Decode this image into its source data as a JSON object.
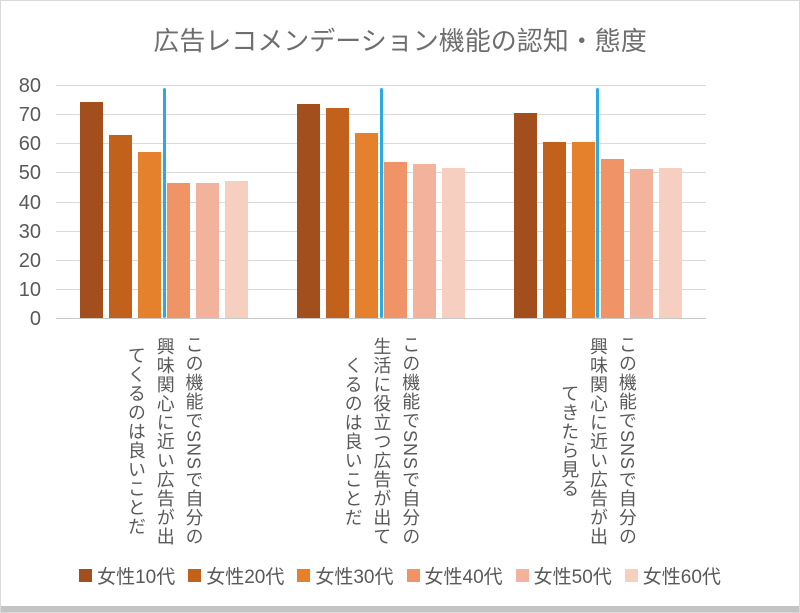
{
  "page": {
    "background": "#FFFFFF",
    "border_color": "#D9D9D9",
    "bottom_strip_color": "#C4C4C4"
  },
  "chart_data": {
    "type": "bar",
    "title": "広告レコメンデーション機能の認知・態度",
    "title_color": "#6E6E6E",
    "categories": [
      "この機能でSNSで自分の\n興味関心に近い広告が出\nてくるのは良いことだ",
      "この機能でSNSで自分の\n生活に役立つ広告が出て\nくるのは良いことだ",
      "この機能でSNSで自分の\n興味関心に近い広告が出\nてきたら見る"
    ],
    "series": [
      {
        "name": "女性10代",
        "color": "#A24F1D",
        "values": [
          74,
          73.5,
          70.5
        ]
      },
      {
        "name": "女性20代",
        "color": "#C2611B",
        "values": [
          63,
          72,
          60.5
        ]
      },
      {
        "name": "女性30代",
        "color": "#E5802D",
        "values": [
          57,
          63.5,
          60.5
        ]
      },
      {
        "name": "女性40代",
        "color": "#F09468",
        "values": [
          46.5,
          53.5,
          54.5
        ]
      },
      {
        "name": "女性50代",
        "color": "#F2B29B",
        "values": [
          46.5,
          53,
          51
        ]
      },
      {
        "name": "女性60代",
        "color": "#F7CFC1",
        "values": [
          47,
          51.5,
          51.5
        ]
      }
    ],
    "divider_line": {
      "color": "#2DA9E1",
      "top_value": 79,
      "position": "vertical line at each category center, between 女性30代 and 女性40代 bars"
    },
    "y_axis": {
      "min": 0,
      "max": 80,
      "step": 10,
      "ticks": [
        0,
        10,
        20,
        30,
        40,
        50,
        60,
        70,
        80
      ],
      "text_color": "#595959"
    },
    "grid": true,
    "gridline_color": "#D9D9D9",
    "legend_position": "bottom"
  }
}
